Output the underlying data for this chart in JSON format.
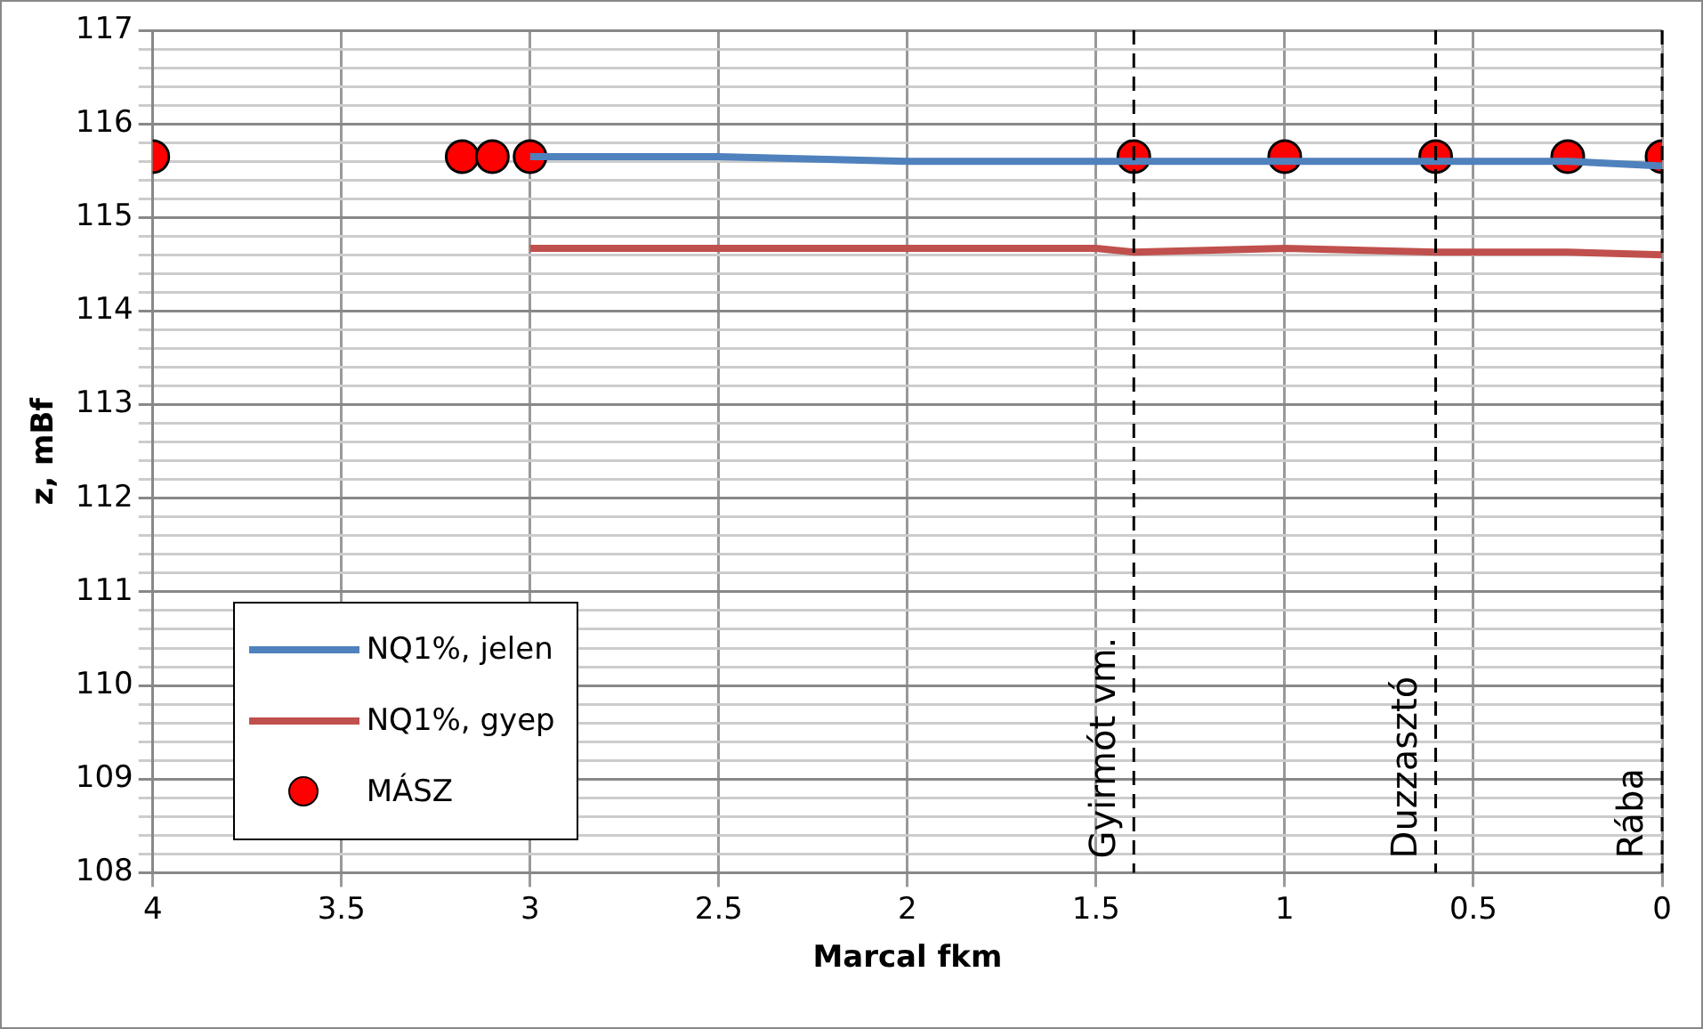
{
  "chart_data": {
    "type": "line",
    "xlabel": "Marcal fkm",
    "ylabel": "z, mBf",
    "xlim": [
      4,
      0
    ],
    "xticks": [
      4,
      3.5,
      3,
      2.5,
      2,
      1.5,
      1,
      0.5,
      0
    ],
    "ylim": [
      108,
      117
    ],
    "yticks": [
      108,
      {
        "value": 108.2,
        "label": null
      },
      {
        "value": 108.4,
        "label": null
      },
      {
        "value": 108.6,
        "label": null
      },
      {
        "value": 108.8,
        "label": null
      },
      109,
      {
        "value": 109.2,
        "label": null
      },
      {
        "value": 109.4,
        "label": null
      },
      {
        "value": 109.6,
        "label": null
      },
      {
        "value": 109.8,
        "label": null
      },
      110,
      {
        "value": 110.2,
        "label": null
      },
      {
        "value": 110.4,
        "label": null
      },
      {
        "value": 110.6,
        "label": null
      },
      {
        "value": 110.8,
        "label": null
      },
      111,
      {
        "value": 111.2,
        "label": null
      },
      {
        "value": 111.4,
        "label": null
      },
      {
        "value": 111.6,
        "label": null
      },
      {
        "value": 111.8,
        "label": null
      },
      112,
      {
        "value": 112.2,
        "label": null
      },
      {
        "value": 112.4,
        "label": null
      },
      {
        "value": 112.6,
        "label": null
      },
      {
        "value": 112.8,
        "label": null
      },
      113,
      {
        "value": 113.2,
        "label": null
      },
      {
        "value": 113.4,
        "label": null
      },
      {
        "value": 113.6,
        "label": null
      },
      {
        "value": 113.8,
        "label": null
      },
      114,
      {
        "value": 114.2,
        "label": null
      },
      {
        "value": 114.4,
        "label": null
      },
      {
        "value": 114.6,
        "label": null
      },
      {
        "value": 114.8,
        "label": null
      },
      115,
      {
        "value": 115.2,
        "label": null
      },
      {
        "value": 115.4,
        "label": null
      },
      {
        "value": 115.6,
        "label": null
      },
      {
        "value": 115.8,
        "label": null
      },
      116,
      {
        "value": 116.2,
        "label": null
      },
      {
        "value": 116.4,
        "label": null
      },
      {
        "value": 116.6,
        "label": null
      },
      {
        "value": 116.8,
        "label": null
      },
      117
    ],
    "grid": true,
    "legend": "bottom left",
    "series": [
      {
        "name": "NQ1%, jelen",
        "type": "line",
        "color": "#4f81bd",
        "marker": "none",
        "x": [
          3,
          2.5,
          2,
          1.5,
          1.4,
          1,
          0.6,
          0.25,
          0
        ],
        "values": [
          115.65,
          115.65,
          115.6,
          115.6,
          115.6,
          115.6,
          115.6,
          115.6,
          115.55
        ]
      },
      {
        "name": "NQ1%, gyep",
        "type": "line",
        "color": "#c0504d",
        "marker": "none",
        "x": [
          3,
          2,
          1.5,
          1.4,
          1,
          0.6,
          0.25,
          0
        ],
        "values": [
          114.67,
          114.67,
          114.67,
          114.63,
          114.67,
          114.63,
          114.63,
          114.6
        ]
      },
      {
        "name": "MÁSZ",
        "type": "scatter",
        "color": "#ff0000",
        "marker": "circle",
        "x": [
          4,
          3.18,
          3.1,
          3,
          1.4,
          1,
          0.6,
          0.25,
          0
        ],
        "values": [
          115.65,
          115.65,
          115.65,
          115.65,
          115.65,
          115.65,
          115.65,
          115.65,
          115.65
        ]
      }
    ],
    "ref_lines": [
      {
        "axis": "x",
        "value": 1.4,
        "label": "Gyirmót vm.",
        "color": "#000000",
        "line_style": "dashed"
      },
      {
        "axis": "x",
        "value": 0.6,
        "label": "Duzzasztó",
        "color": "#000000",
        "line_style": "dashed"
      },
      {
        "axis": "x",
        "value": 0,
        "label": "Rába",
        "color": "#000000",
        "line_style": "dashed"
      }
    ]
  }
}
